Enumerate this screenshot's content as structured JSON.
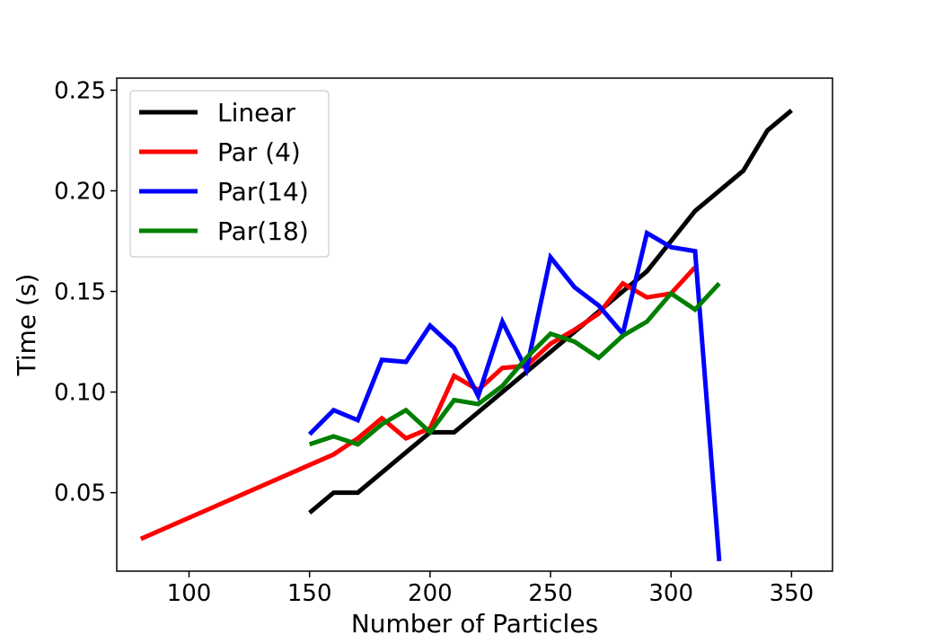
{
  "chart_data": {
    "type": "line",
    "title": "",
    "xlabel": "Number of Particles",
    "ylabel": "Time (s)",
    "xlim": [
      70,
      367
    ],
    "ylim": [
      0.011,
      0.256
    ],
    "xticks": [
      100,
      150,
      200,
      250,
      300,
      350
    ],
    "yticks": [
      0.05,
      0.1,
      0.15,
      0.2,
      0.25
    ],
    "xtick_labels": [
      "100",
      "150",
      "200",
      "250",
      "300",
      "350"
    ],
    "ytick_labels": [
      "0.05",
      "0.10",
      "0.15",
      "0.20",
      "0.25"
    ],
    "grid": false,
    "legend_position": "top-left",
    "series": [
      {
        "name": "Linear",
        "color": "#000000",
        "x": [
          150,
          160,
          170,
          180,
          190,
          200,
          210,
          220,
          230,
          240,
          250,
          260,
          270,
          280,
          290,
          300,
          310,
          320,
          330,
          340,
          350
        ],
        "y": [
          0.04,
          0.05,
          0.05,
          0.06,
          0.07,
          0.08,
          0.08,
          0.09,
          0.1,
          0.11,
          0.12,
          0.13,
          0.14,
          0.15,
          0.16,
          0.175,
          0.19,
          0.2,
          0.21,
          0.23,
          0.24
        ]
      },
      {
        "name": "Par (4)",
        "color": "#ff0000",
        "x": [
          80,
          160,
          170,
          180,
          190,
          200,
          210,
          220,
          230,
          240,
          250,
          260,
          270,
          280,
          290,
          300,
          310
        ],
        "y": [
          0.027,
          0.069,
          0.077,
          0.087,
          0.077,
          0.082,
          0.108,
          0.101,
          0.112,
          0.113,
          0.124,
          0.131,
          0.139,
          0.154,
          0.147,
          0.149,
          0.162
        ]
      },
      {
        "name": "Par(14)",
        "color": "#0000ff",
        "x": [
          150,
          160,
          170,
          180,
          190,
          200,
          210,
          220,
          230,
          240,
          250,
          260,
          270,
          280,
          290,
          300,
          310,
          320
        ],
        "y": [
          0.079,
          0.091,
          0.086,
          0.116,
          0.115,
          0.133,
          0.122,
          0.098,
          0.135,
          0.111,
          0.167,
          0.152,
          0.143,
          0.129,
          0.179,
          0.172,
          0.17,
          0.016
        ]
      },
      {
        "name": "Par(18)",
        "color": "#008000",
        "x": [
          150,
          160,
          170,
          180,
          190,
          200,
          210,
          220,
          230,
          240,
          250,
          260,
          270,
          280,
          290,
          300,
          310,
          320
        ],
        "y": [
          0.074,
          0.078,
          0.074,
          0.084,
          0.091,
          0.08,
          0.096,
          0.094,
          0.103,
          0.117,
          0.129,
          0.125,
          0.117,
          0.128,
          0.135,
          0.149,
          0.141,
          0.154
        ]
      }
    ]
  }
}
